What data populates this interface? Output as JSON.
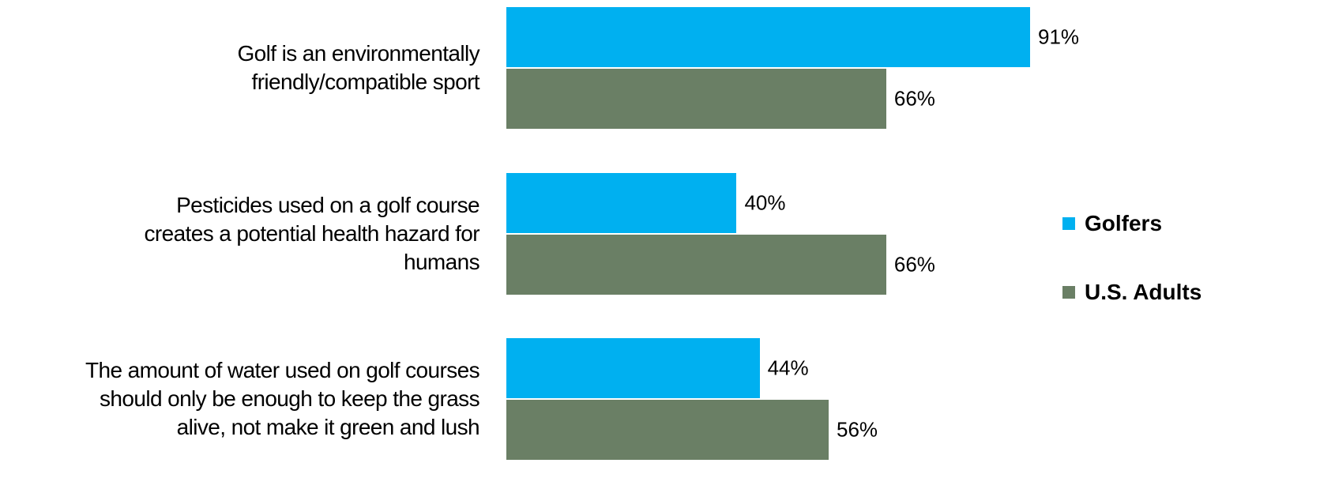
{
  "chart_data": {
    "type": "bar",
    "orientation": "horizontal",
    "categories": [
      "Golf is an environmentally\nfriendly/compatible sport",
      "Pesticides used on a golf course\ncreates a potential health hazard for\nhumans",
      "The amount of water used on golf courses\nshould only be enough to keep the grass\nalive, not make it green and lush"
    ],
    "series": [
      {
        "name": "Golfers",
        "color": "#00b0f0",
        "values": [
          91,
          40,
          44
        ],
        "value_labels": [
          "91%",
          "40%",
          "44%"
        ]
      },
      {
        "name": "U.S. Adults",
        "color": "#6a7f65",
        "values": [
          66,
          66,
          56
        ],
        "value_labels": [
          "66%",
          "66%",
          "56%"
        ]
      }
    ],
    "legend": "right"
  }
}
